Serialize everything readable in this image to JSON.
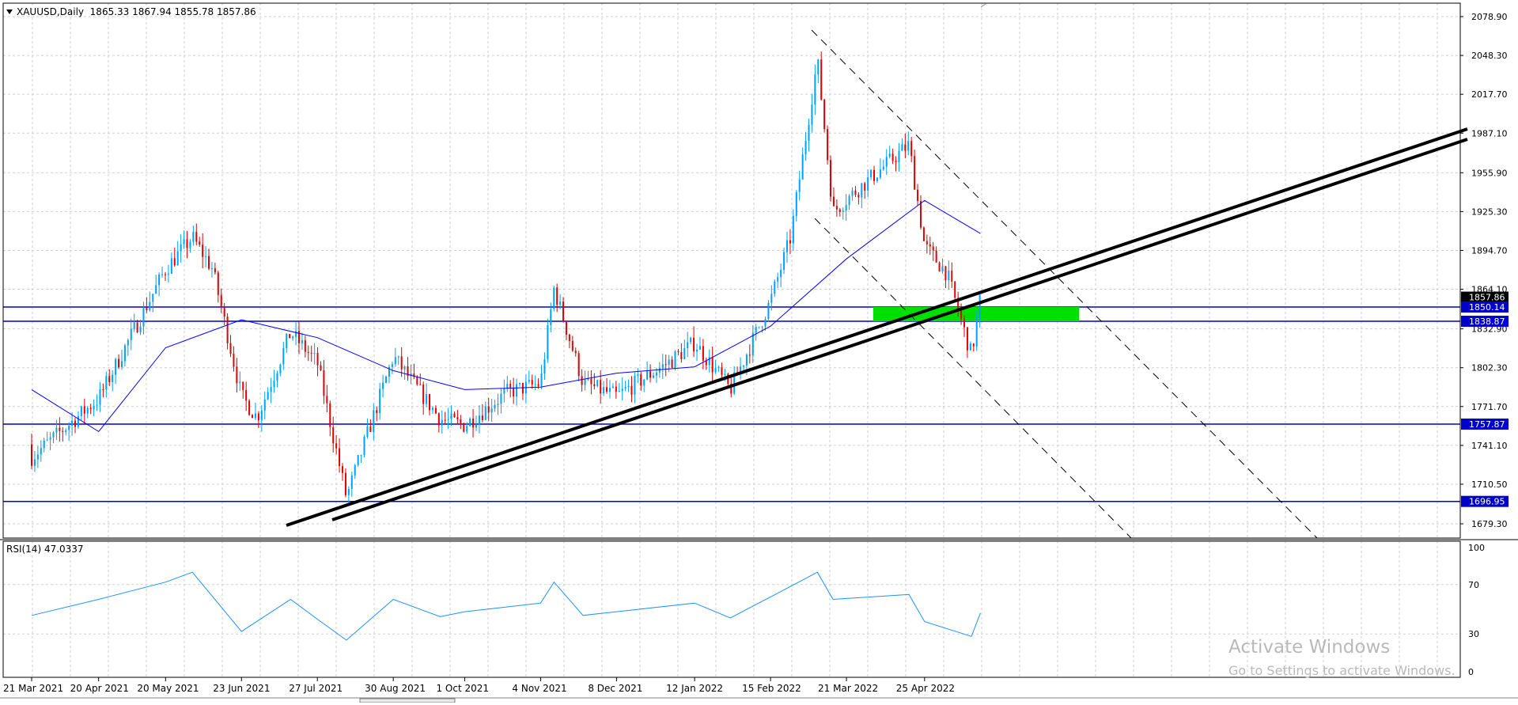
{
  "header": {
    "symbol": "XAUUSD,Daily",
    "ohlc": "1865.33 1867.94 1855.78 1857.86"
  },
  "rsi_panel": {
    "label": "RSI(14) 47.0337",
    "levels": [
      "100",
      "70",
      "30",
      "0"
    ]
  },
  "price_axis": {
    "ticks": [
      "2078.90",
      "2048.30",
      "2017.70",
      "1987.10",
      "1955.90",
      "1925.30",
      "1894.70",
      "1864.10",
      "1832.90",
      "1802.30",
      "1771.70",
      "1741.10",
      "1710.50",
      "1679.30"
    ]
  },
  "price_tags": [
    {
      "label": "1857.86",
      "style": "current",
      "color": "#000000"
    },
    {
      "label": "1850.14",
      "style": "level",
      "color": "#0000cc"
    },
    {
      "label": "1838.87",
      "style": "level",
      "color": "#0000cc"
    },
    {
      "label": "1757.87",
      "style": "level",
      "color": "#0000cc"
    },
    {
      "label": "1696.95",
      "style": "level",
      "color": "#0000cc"
    }
  ],
  "date_axis": {
    "labels": [
      "21 Mar 2021",
      "20 Apr 2021",
      "20 May 2021",
      "23 Jun 2021",
      "27 Jul 2021",
      "30 Aug 2021",
      "1 Oct 2021",
      "4 Nov 2021",
      "8 Dec 2021",
      "12 Jan 2022",
      "15 Feb 2022",
      "21 Mar 2022",
      "25 Apr 2022"
    ]
  },
  "watermark": {
    "line1": "Activate Windows",
    "line2": "Go to Settings to activate Windows."
  },
  "colors": {
    "bull_candle": "#00a0ff",
    "bear_candle": "#e00000",
    "moving_average": "#0000ff",
    "rsi_line": "#1e90ff",
    "horizontal_levels": "#0000cc",
    "trendlines": "#000000",
    "zone": "#00e000",
    "grid": "#cfcfcf"
  },
  "chart_data": {
    "type": "candlestick",
    "symbol": "XAUUSD",
    "timeframe": "Daily",
    "close_path": [
      [
        "21 Mar 2021",
        1732
      ],
      [
        "20 Apr 2021",
        1778
      ],
      [
        "20 May 2021",
        1880
      ],
      [
        "1 Jun 2021",
        1905
      ],
      [
        "10 Jun 2021",
        1880
      ],
      [
        "23 Jun 2021",
        1780
      ],
      [
        "30 Jun 2021",
        1763
      ],
      [
        "15 Jul 2021",
        1830
      ],
      [
        "27 Jul 2021",
        1806
      ],
      [
        "9 Aug 2021",
        1700
      ],
      [
        "30 Aug 2021",
        1811
      ],
      [
        "20 Sep 2021",
        1762
      ],
      [
        "1 Oct 2021",
        1757
      ],
      [
        "20 Oct 2021",
        1783
      ],
      [
        "4 Nov 2021",
        1790
      ],
      [
        "10 Nov 2021",
        1865
      ],
      [
        "23 Nov 2021",
        1790
      ],
      [
        "8 Dec 2021",
        1780
      ],
      [
        "31 Dec 2021",
        1806
      ],
      [
        "12 Jan 2022",
        1822
      ],
      [
        "28 Jan 2022",
        1785
      ],
      [
        "15 Feb 2022",
        1855
      ],
      [
        "24 Feb 2022",
        1905
      ],
      [
        "8 Mar 2022",
        2045
      ],
      [
        "15 Mar 2022",
        1925
      ],
      [
        "21 Mar 2022",
        1935
      ],
      [
        "18 Apr 2022",
        1978
      ],
      [
        "25 Apr 2022",
        1898
      ],
      [
        "5 May 2022",
        1877
      ],
      [
        "16 May 2022",
        1812
      ],
      [
        "20 May 2022",
        1857.86
      ]
    ],
    "horizontal_levels": [
      1850.14,
      1838.87,
      1757.87,
      1696.95
    ],
    "support_zone": [
      1838.87,
      1850.14
    ],
    "ma_path": [
      [
        "21 Mar 2021",
        1785
      ],
      [
        "20 Apr 2021",
        1752
      ],
      [
        "20 May 2021",
        1818
      ],
      [
        "23 Jun 2021",
        1840
      ],
      [
        "27 Jul 2021",
        1826
      ],
      [
        "30 Aug 2021",
        1800
      ],
      [
        "1 Oct 2021",
        1785
      ],
      [
        "4 Nov 2021",
        1787
      ],
      [
        "8 Dec 2021",
        1798
      ],
      [
        "12 Jan 2022",
        1803
      ],
      [
        "15 Feb 2022",
        1835
      ],
      [
        "21 Mar 2022",
        1888
      ],
      [
        "25 Apr 2022",
        1934
      ],
      [
        "20 May 2022",
        1908
      ]
    ],
    "rsi_path": [
      [
        "21 Mar 2021",
        45
      ],
      [
        "20 Apr 2021",
        58
      ],
      [
        "20 May 2021",
        72
      ],
      [
        "1 Jun 2021",
        80
      ],
      [
        "23 Jun 2021",
        32
      ],
      [
        "15 Jul 2021",
        58
      ],
      [
        "27 Jul 2021",
        42
      ],
      [
        "9 Aug 2021",
        25
      ],
      [
        "30 Aug 2021",
        58
      ],
      [
        "20 Sep 2021",
        44
      ],
      [
        "1 Oct 2021",
        48
      ],
      [
        "4 Nov 2021",
        55
      ],
      [
        "10 Nov 2021",
        72
      ],
      [
        "23 Nov 2021",
        45
      ],
      [
        "8 Dec 2021",
        48
      ],
      [
        "12 Jan 2022",
        55
      ],
      [
        "28 Jan 2022",
        43
      ],
      [
        "15 Feb 2022",
        60
      ],
      [
        "8 Mar 2022",
        80
      ],
      [
        "15 Mar 2022",
        58
      ],
      [
        "18 Apr 2022",
        62
      ],
      [
        "25 Apr 2022",
        40
      ],
      [
        "16 May 2022",
        28
      ],
      [
        "20 May 2022",
        47
      ]
    ],
    "rsi_value": 47.0337,
    "rsi_levels": [
      30,
      70
    ],
    "ylim": [
      1675,
      2090
    ]
  }
}
